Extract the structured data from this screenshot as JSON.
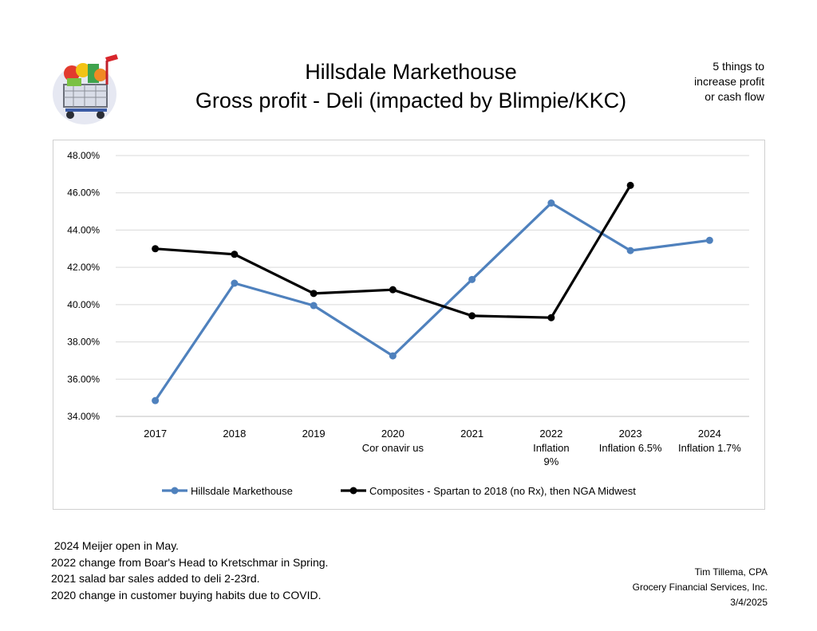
{
  "header": {
    "title_line1": "Hillsdale Markethouse",
    "title_line2": "Gross profit - Deli (impacted by Blimpie/KKC)",
    "side_note": [
      "5 things to",
      "increase profit",
      "or cash flow"
    ]
  },
  "logo": {
    "icon": "shopping-cart-icon"
  },
  "chart_data": {
    "type": "line",
    "title": "",
    "xlabel": "",
    "ylabel": "",
    "categories": [
      "2017",
      "2018",
      "2019",
      "2020",
      "2021",
      "2022",
      "2023",
      "2024"
    ],
    "category_sublabels": [
      [],
      [],
      [],
      [
        "Cor onavir us"
      ],
      [],
      [
        "Inflation",
        "9%"
      ],
      [
        "Inflation 6.5%"
      ],
      [
        "Inflation 1.7%"
      ]
    ],
    "y_ticks": [
      "34.00%",
      "36.00%",
      "38.00%",
      "40.00%",
      "42.00%",
      "44.00%",
      "46.00%",
      "48.00%"
    ],
    "ylim": [
      34,
      48
    ],
    "grid": true,
    "legend_position": "bottom",
    "series": [
      {
        "name": "Hillsdale Markethouse",
        "color": "#4f81bd",
        "values": [
          34.85,
          41.15,
          39.95,
          37.25,
          41.35,
          45.45,
          42.9,
          43.45
        ]
      },
      {
        "name": "Composites - Spartan to 2018 (no Rx), then NGA Midwest",
        "color": "#000000",
        "values": [
          43.0,
          42.7,
          40.6,
          40.8,
          39.4,
          39.3,
          46.4,
          null
        ]
      }
    ]
  },
  "notes": [
    " 2024 Meijer open in May.",
    "2022 change from Boar's Head to Kretschmar in Spring.",
    "2021 salad bar sales added to deli 2-23rd.",
    "2020 change in customer buying habits due to COVID."
  ],
  "credit": [
    "Tim Tillema, CPA",
    "Grocery Financial Services, Inc.",
    "3/4/2025"
  ]
}
